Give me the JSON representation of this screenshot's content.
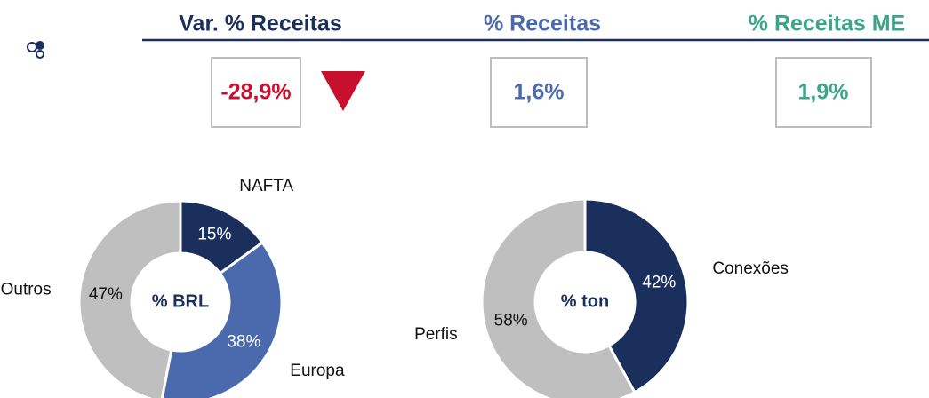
{
  "kpis": [
    {
      "title": "Var. % Receitas",
      "value": "-28,9%"
    },
    {
      "title": "% Receitas",
      "value": "1,6%"
    },
    {
      "title": "% Receitas ME",
      "value": "1,9%"
    }
  ],
  "chart_data": [
    {
      "type": "donut",
      "center_label": "% BRL",
      "categories": [
        "NAFTA",
        "Europa",
        "Outros"
      ],
      "values": [
        15,
        38,
        47
      ],
      "value_labels": [
        "15%",
        "38%",
        "47%"
      ],
      "colors": [
        "#1b2f5c",
        "#4a6aad",
        "#bfbfbf"
      ]
    },
    {
      "type": "donut",
      "center_label": "% ton",
      "categories": [
        "Conexões",
        "Perfis"
      ],
      "values": [
        42,
        58
      ],
      "value_labels": [
        "42%",
        "58%"
      ],
      "colors": [
        "#1b2f5c",
        "#bfbfbf"
      ]
    }
  ]
}
